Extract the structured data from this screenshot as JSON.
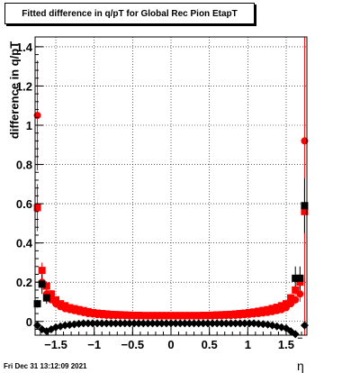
{
  "page": {
    "title": "Fitted difference in q/pT for Global Rec Pion EtapT",
    "ylabel": "difference in q/pT",
    "xlabel": "η",
    "timestamp": "Fri Dec 31 13:12:09 2021"
  },
  "chart_data": {
    "type": "scatter",
    "title": "Fitted difference in q/pT for Global Rec Pion EtapT",
    "xlabel": "η",
    "ylabel": "difference in q/pT",
    "xlim": [
      -1.77,
      1.77
    ],
    "ylim": [
      -0.07,
      1.45
    ],
    "grid": true,
    "x_ticks": [
      -1.5,
      -1,
      -0.5,
      0,
      0.5,
      1,
      1.5
    ],
    "x_tick_labels": [
      "−1.5",
      "−1",
      "−0.5",
      "0",
      "0.5",
      "1",
      "1.5"
    ],
    "y_ticks": [
      0,
      0.2,
      0.4,
      0.6,
      0.8,
      1.0,
      1.2,
      1.4
    ],
    "y_tick_labels": [
      "0",
      "0.2",
      "0.4",
      "0.6",
      "0.8",
      "1",
      "1.2",
      "1.4"
    ],
    "colors": {
      "red": "#ff0000",
      "black": "#000000"
    },
    "series": [
      {
        "marker": "circle",
        "color": "#ff0000",
        "x": [
          -1.74,
          -1.68,
          -1.62,
          -1.56,
          -1.5,
          -1.44,
          -1.38,
          -1.32,
          -1.26,
          -1.2,
          -1.14,
          -1.08,
          -1.02,
          -0.96,
          -0.9,
          -0.84,
          -0.78,
          -0.72,
          -0.66,
          -0.6,
          -0.54,
          -0.48,
          -0.42,
          -0.36,
          -0.3,
          -0.24,
          -0.18,
          -0.12,
          -0.06,
          0.0,
          0.06,
          0.12,
          0.18,
          0.24,
          0.3,
          0.36,
          0.42,
          0.48,
          0.54,
          0.6,
          0.66,
          0.72,
          0.78,
          0.84,
          0.9,
          0.96,
          1.02,
          1.08,
          1.14,
          1.2,
          1.26,
          1.32,
          1.38,
          1.44,
          1.5,
          1.56,
          1.62,
          1.68,
          1.74
        ],
        "y": [
          1.05,
          0.2,
          0.14,
          0.11,
          0.09,
          0.075,
          0.065,
          0.06,
          0.055,
          0.05,
          0.045,
          0.04,
          0.038,
          0.035,
          0.033,
          0.031,
          0.03,
          0.03,
          0.029,
          0.029,
          0.028,
          0.028,
          0.028,
          0.028,
          0.028,
          0.028,
          0.028,
          0.028,
          0.028,
          0.028,
          0.028,
          0.028,
          0.028,
          0.028,
          0.028,
          0.028,
          0.028,
          0.028,
          0.028,
          0.029,
          0.029,
          0.03,
          0.03,
          0.031,
          0.032,
          0.034,
          0.036,
          0.038,
          0.04,
          0.043,
          0.046,
          0.05,
          0.055,
          0.06,
          0.07,
          0.09,
          0.11,
          0.14,
          0.92
        ],
        "err": [
          0.28,
          0.04,
          0.02,
          0.015,
          0.01,
          0.008,
          0.006,
          0.005,
          0.004,
          0.004,
          0.004,
          0.003,
          0.003,
          0.003,
          0.003,
          0.003,
          0.003,
          0.003,
          0.003,
          0.003,
          0.003,
          0.003,
          0.003,
          0.003,
          0.003,
          0.003,
          0.003,
          0.003,
          0.003,
          0.003,
          0.003,
          0.003,
          0.003,
          0.003,
          0.003,
          0.003,
          0.003,
          0.003,
          0.003,
          0.003,
          0.003,
          0.003,
          0.003,
          0.003,
          0.003,
          0.003,
          0.003,
          0.003,
          0.004,
          0.004,
          0.004,
          0.005,
          0.006,
          0.008,
          0.01,
          0.015,
          0.02,
          0.04,
          1.2
        ]
      },
      {
        "marker": "square",
        "color": "#ff0000",
        "x": [
          -1.74,
          -1.68,
          -1.62,
          -1.56,
          -1.5,
          -1.44,
          -1.38,
          -1.32,
          -1.26,
          -1.2,
          -1.14,
          -1.08,
          -1.02,
          -0.96,
          -0.9,
          -0.84,
          -0.78,
          -0.72,
          -0.66,
          -0.6,
          -0.54,
          -0.48,
          -0.42,
          -0.36,
          -0.3,
          -0.24,
          -0.18,
          -0.12,
          -0.06,
          0.0,
          0.06,
          0.12,
          0.18,
          0.24,
          0.3,
          0.36,
          0.42,
          0.48,
          0.54,
          0.6,
          0.66,
          0.72,
          0.78,
          0.84,
          0.9,
          0.96,
          1.02,
          1.08,
          1.14,
          1.2,
          1.26,
          1.32,
          1.38,
          1.44,
          1.5,
          1.56,
          1.62,
          1.68,
          1.74
        ],
        "y": [
          0.58,
          0.26,
          0.18,
          0.14,
          0.11,
          0.09,
          0.08,
          0.07,
          0.065,
          0.06,
          0.055,
          0.05,
          0.045,
          0.042,
          0.04,
          0.038,
          0.036,
          0.035,
          0.034,
          0.033,
          0.032,
          0.031,
          0.031,
          0.03,
          0.03,
          0.03,
          0.03,
          0.03,
          0.03,
          0.03,
          0.03,
          0.03,
          0.03,
          0.03,
          0.03,
          0.03,
          0.031,
          0.031,
          0.032,
          0.033,
          0.034,
          0.035,
          0.036,
          0.038,
          0.04,
          0.042,
          0.045,
          0.048,
          0.052,
          0.056,
          0.06,
          0.066,
          0.072,
          0.08,
          0.09,
          0.12,
          0.16,
          0.2,
          0.56
        ],
        "err": [
          0.12,
          0.04,
          0.025,
          0.02,
          0.015,
          0.01,
          0.008,
          0.006,
          0.005,
          0.005,
          0.004,
          0.004,
          0.003,
          0.003,
          0.003,
          0.003,
          0.003,
          0.003,
          0.003,
          0.003,
          0.003,
          0.003,
          0.003,
          0.003,
          0.003,
          0.003,
          0.003,
          0.003,
          0.003,
          0.003,
          0.003,
          0.003,
          0.003,
          0.003,
          0.003,
          0.003,
          0.003,
          0.003,
          0.003,
          0.003,
          0.003,
          0.003,
          0.003,
          0.003,
          0.003,
          0.003,
          0.004,
          0.004,
          0.004,
          0.005,
          0.005,
          0.006,
          0.008,
          0.01,
          0.015,
          0.02,
          0.025,
          0.04,
          0.12
        ]
      },
      {
        "marker": "square",
        "color": "#000000",
        "x": [
          -1.74,
          -1.68,
          -1.62,
          1.62,
          1.68,
          1.74
        ],
        "y": [
          0.09,
          0.19,
          0.12,
          0.22,
          0.22,
          0.59
        ],
        "err": [
          0.02,
          0.05,
          0.03,
          0.06,
          0.06,
          0.14
        ]
      },
      {
        "marker": "diamond",
        "color": "#000000",
        "x": [
          -1.74,
          -1.68,
          -1.62,
          -1.56,
          -1.5,
          -1.44,
          -1.38,
          -1.32,
          -1.26,
          -1.2,
          -1.14,
          -1.08,
          -1.02,
          -0.96,
          -0.9,
          -0.84,
          -0.78,
          -0.72,
          -0.66,
          -0.6,
          -0.54,
          -0.48,
          -0.42,
          -0.36,
          -0.3,
          -0.24,
          -0.18,
          -0.12,
          -0.06,
          0.0,
          0.06,
          0.12,
          0.18,
          0.24,
          0.3,
          0.36,
          0.42,
          0.48,
          0.54,
          0.6,
          0.66,
          0.72,
          0.78,
          0.84,
          0.9,
          0.96,
          1.02,
          1.08,
          1.14,
          1.2,
          1.26,
          1.32,
          1.38,
          1.44,
          1.5,
          1.56,
          1.62,
          1.68,
          1.74
        ],
        "y": [
          -0.02,
          -0.04,
          -0.05,
          -0.04,
          -0.03,
          -0.025,
          -0.02,
          -0.018,
          -0.015,
          -0.012,
          -0.01,
          -0.01,
          -0.01,
          -0.01,
          -0.01,
          -0.01,
          -0.01,
          -0.01,
          -0.01,
          -0.01,
          -0.01,
          -0.01,
          -0.01,
          -0.01,
          -0.01,
          -0.01,
          -0.01,
          -0.01,
          -0.01,
          -0.01,
          -0.01,
          -0.01,
          -0.01,
          -0.01,
          -0.01,
          -0.01,
          -0.01,
          -0.01,
          -0.01,
          -0.01,
          -0.01,
          -0.01,
          -0.01,
          -0.01,
          -0.01,
          -0.01,
          -0.01,
          -0.01,
          -0.012,
          -0.014,
          -0.016,
          -0.02,
          -0.025,
          -0.03,
          -0.035,
          -0.05,
          -0.065,
          -0.085,
          -0.02
        ],
        "err": [
          0.01,
          0.01,
          0.01,
          0.008,
          0.006,
          0.005,
          0.004,
          0.003,
          0.003,
          0.003,
          0.003,
          0.003,
          0.003,
          0.003,
          0.003,
          0.003,
          0.003,
          0.003,
          0.003,
          0.003,
          0.003,
          0.003,
          0.003,
          0.003,
          0.003,
          0.003,
          0.003,
          0.003,
          0.003,
          0.003,
          0.003,
          0.003,
          0.003,
          0.003,
          0.003,
          0.003,
          0.003,
          0.003,
          0.003,
          0.003,
          0.003,
          0.003,
          0.003,
          0.003,
          0.003,
          0.003,
          0.003,
          0.003,
          0.003,
          0.003,
          0.003,
          0.003,
          0.004,
          0.005,
          0.006,
          0.008,
          0.01,
          0.015,
          0.02
        ]
      }
    ]
  }
}
